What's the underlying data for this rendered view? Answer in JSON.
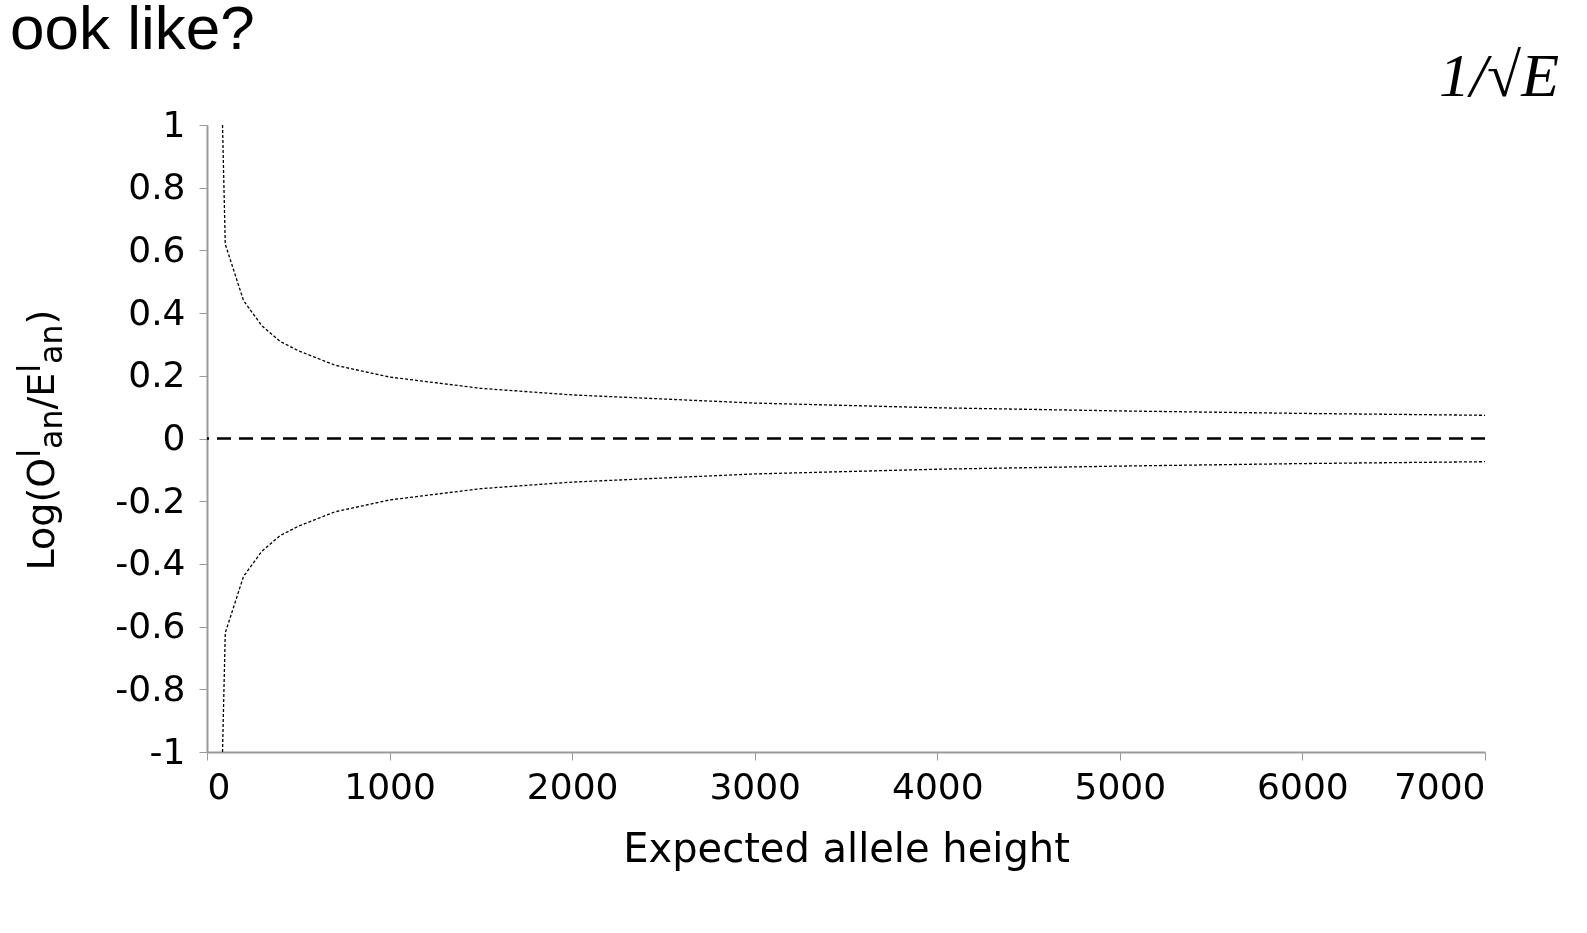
{
  "chart_data": {
    "type": "line",
    "title": "ook like?",
    "xlabel": "Expected allele height",
    "ylabel": "Log(O$^{l}$$_{an}$/E$^{l}$$_{an}$)",
    "annotations": [
      "1/√E"
    ],
    "x": [
      85,
      100,
      200,
      300,
      400,
      500,
      700,
      1000,
      1500,
      2000,
      3000,
      4000,
      5000,
      6000,
      7000
    ],
    "series": [
      {
        "color": "#000000",
        "values": [
          1,
          0.62,
          0.44,
          0.36,
          0.31,
          0.28,
          0.234,
          0.196,
          0.16,
          0.139,
          0.113,
          0.098,
          0.088,
          0.08,
          0.074
        ]
      },
      {
        "color": "#000000",
        "values": [
          -1,
          -0.62,
          -0.44,
          -0.36,
          -0.31,
          -0.28,
          -0.234,
          -0.196,
          -0.16,
          -0.139,
          -0.113,
          -0.098,
          -0.088,
          -0.08,
          -0.074
        ]
      }
    ],
    "xlim": [
      0,
      7000
    ],
    "xticks": [
      0,
      1000,
      2000,
      3000,
      4000,
      5000,
      6000,
      7000
    ],
    "ylim": [
      -1,
      1
    ],
    "yticks": [
      -1,
      -0.8,
      -0.6,
      -0.4,
      -0.2,
      0,
      0.2,
      0.4,
      0.6,
      0.8,
      1
    ],
    "ref_lines": [
      {
        "axis": "y",
        "value": 0,
        "color": "#000000",
        "line_style": "dashed"
      }
    ],
    "line_style": "dotted",
    "grid": false,
    "legend": false
  }
}
